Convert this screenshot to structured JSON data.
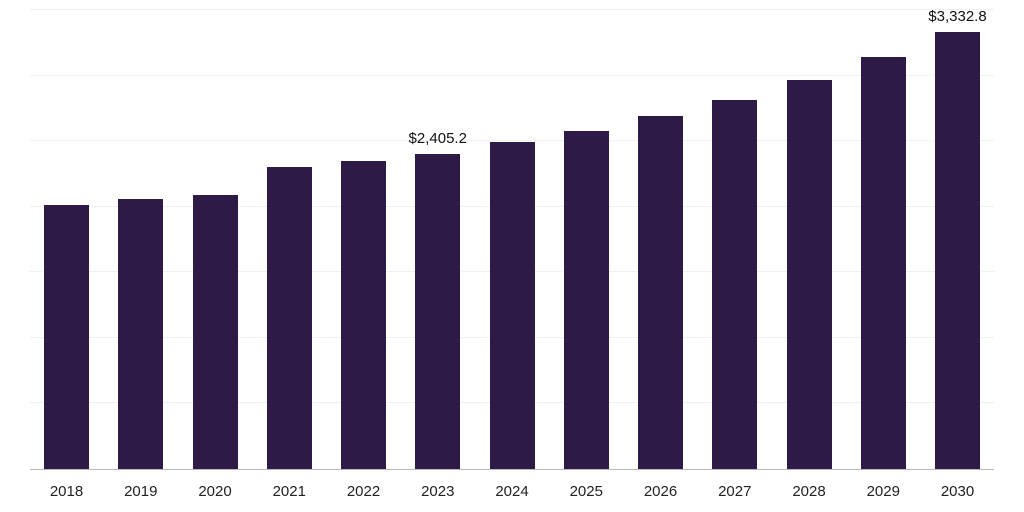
{
  "chart_data": {
    "type": "bar",
    "title": "",
    "xlabel": "",
    "ylabel": "",
    "categories": [
      "2018",
      "2019",
      "2020",
      "2021",
      "2022",
      "2023",
      "2024",
      "2025",
      "2026",
      "2027",
      "2028",
      "2029",
      "2030"
    ],
    "values": [
      2015.0,
      2060.0,
      2090.0,
      2300.0,
      2350.0,
      2405.2,
      2490.0,
      2580.0,
      2690.0,
      2815.0,
      2970.0,
      3140.0,
      3332.8
    ],
    "annotations": [
      {
        "category": "2023",
        "text": "$2,405.2"
      },
      {
        "category": "2030",
        "text": "$3,332.8"
      }
    ],
    "ylim": [
      0,
      3500
    ],
    "gridline_interval": 500,
    "grid": true,
    "legend": "none",
    "bar_color": "#2e1a47",
    "baseline_color": "#b9b9b9",
    "gridline_color": "#f0f0f0"
  }
}
